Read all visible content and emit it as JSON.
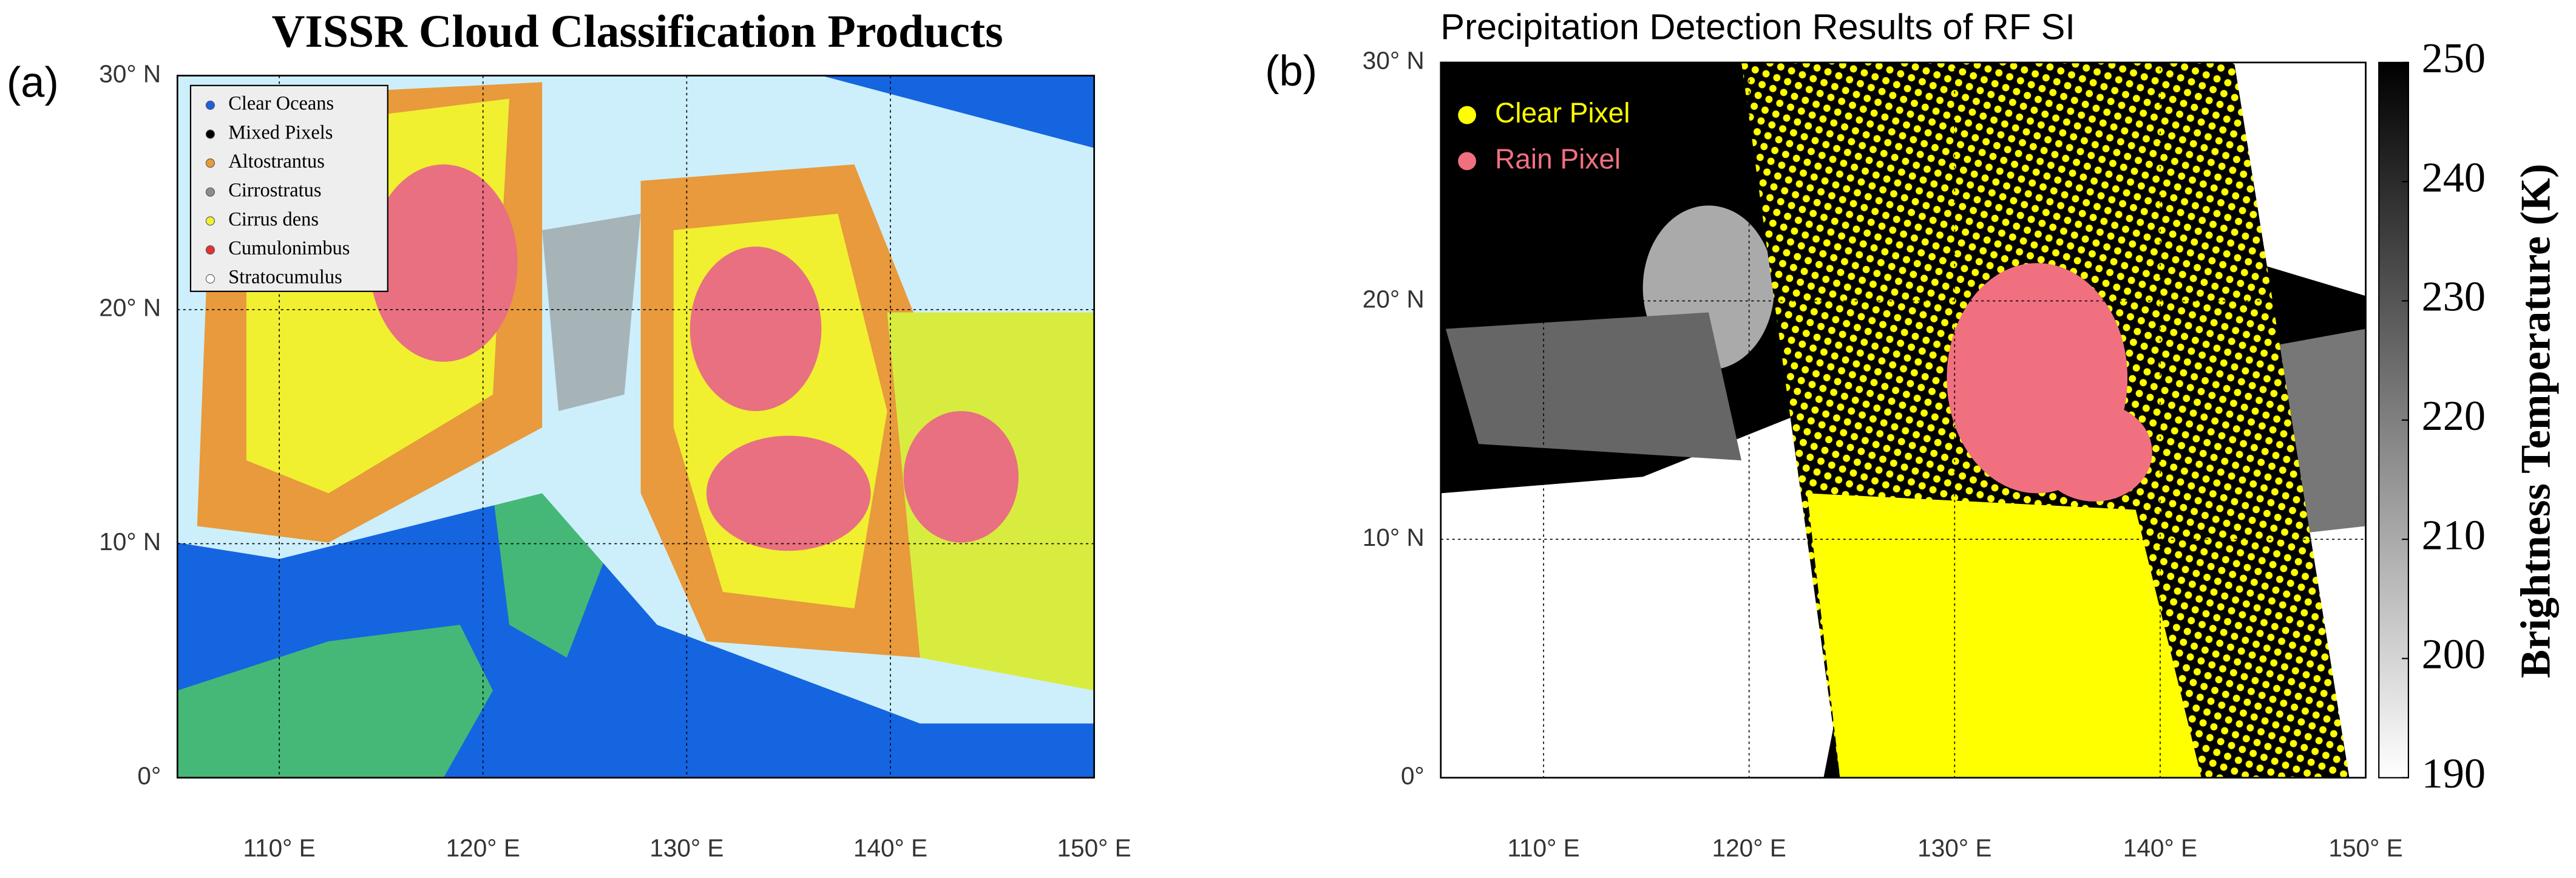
{
  "panels": [
    {
      "tag": "(a)",
      "title": "VISSR Cloud Classification Products",
      "xlim": [
        105,
        150
      ],
      "ylim": [
        0,
        30
      ],
      "xticks": [
        {
          "value": 110,
          "label": "110° E"
        },
        {
          "value": 120,
          "label": "120° E"
        },
        {
          "value": 130,
          "label": "130° E"
        },
        {
          "value": 140,
          "label": "140° E"
        },
        {
          "value": 150,
          "label": "150° E"
        }
      ],
      "yticks": [
        {
          "value": 0,
          "label": "0°"
        },
        {
          "value": 10,
          "label": "10° N"
        },
        {
          "value": 20,
          "label": "20° N"
        },
        {
          "value": 30,
          "label": "30° N"
        }
      ],
      "legend": [
        {
          "name": "Clear Oceans",
          "color": "#1f5fe0"
        },
        {
          "name": "Mixed Pixels",
          "color": "#000000"
        },
        {
          "name": "Altostrantus",
          "color": "#e89a3c"
        },
        {
          "name": "Cirrostratus",
          "color": "#8c8c8c"
        },
        {
          "name": "Cirrus dens",
          "color": "#f0f030"
        },
        {
          "name": "Cumulonimbus",
          "color": "#e83030"
        },
        {
          "name": "Stratocumulus",
          "color": "#ffffff"
        }
      ]
    },
    {
      "tag": "(b)",
      "title": "Precipitation Detection Results of RF SI",
      "xlim": [
        105,
        150
      ],
      "ylim": [
        0,
        30
      ],
      "xticks": [
        {
          "value": 110,
          "label": "110° E"
        },
        {
          "value": 120,
          "label": "120° E"
        },
        {
          "value": 130,
          "label": "130° E"
        },
        {
          "value": 140,
          "label": "140° E"
        },
        {
          "value": 150,
          "label": "150° E"
        }
      ],
      "yticks": [
        {
          "value": 0,
          "label": "0°"
        },
        {
          "value": 10,
          "label": "10° N"
        },
        {
          "value": 20,
          "label": "20° N"
        },
        {
          "value": 30,
          "label": "30° N"
        }
      ],
      "legend": [
        {
          "name": "Clear Pixel",
          "color": "#ffff00"
        },
        {
          "name": "Rain Pixel",
          "color": "#f07080"
        }
      ],
      "colorbar": {
        "label": "Brightness Temperature (K)",
        "lim": [
          190,
          250
        ],
        "ticks": [
          190,
          200,
          210,
          220,
          230,
          240,
          250
        ]
      }
    }
  ]
}
